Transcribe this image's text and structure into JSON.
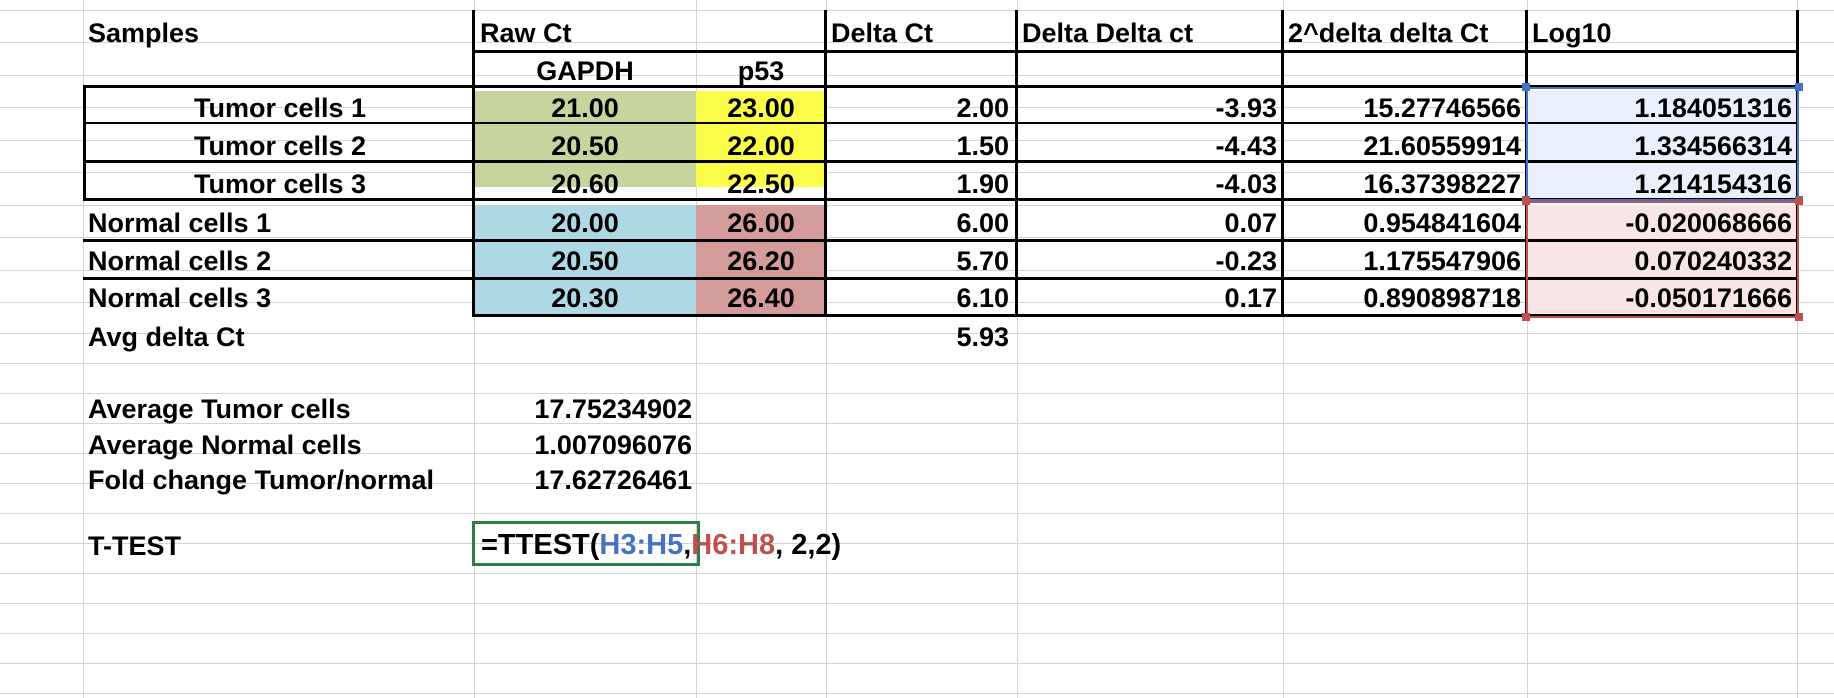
{
  "headers": {
    "samples": "Samples",
    "raw_ct": "Raw Ct",
    "gapdh": "GAPDH",
    "p53": "p53",
    "delta_ct": "Delta Ct",
    "delta_delta_ct": "Delta Delta ct",
    "two_pow": "2^delta delta Ct",
    "log10": "Log10"
  },
  "rows": [
    {
      "sample": "Tumor cells 1",
      "gapdh": "21.00",
      "p53": "23.00",
      "delta": "2.00",
      "ddct": "-3.93",
      "pow": "15.27746566",
      "log": "1.184051316"
    },
    {
      "sample": "Tumor cells 2",
      "gapdh": "20.50",
      "p53": "22.00",
      "delta": "1.50",
      "ddct": "-4.43",
      "pow": "21.60559914",
      "log": "1.334566314"
    },
    {
      "sample": "Tumor cells 3",
      "gapdh": "20.60",
      "p53": "22.50",
      "delta": "1.90",
      "ddct": "-4.03",
      "pow": "16.37398227",
      "log": "1.214154316"
    },
    {
      "sample": "Normal cells 1",
      "gapdh": "20.00",
      "p53": "26.00",
      "delta": "6.00",
      "ddct": "0.07",
      "pow": "0.954841604",
      "log": "-0.020068666"
    },
    {
      "sample": "Normal cells 2",
      "gapdh": "20.50",
      "p53": "26.20",
      "delta": "5.70",
      "ddct": "-0.23",
      "pow": "1.175547906",
      "log": "0.070240332"
    },
    {
      "sample": "Normal cells 3",
      "gapdh": "20.30",
      "p53": "26.40",
      "delta": "6.10",
      "ddct": "0.17",
      "pow": "0.890898718",
      "log": "-0.050171666"
    }
  ],
  "avg": {
    "label": "Avg delta Ct",
    "value": "5.93"
  },
  "summary": [
    {
      "label": "Average Tumor cells",
      "value": "17.75234902"
    },
    {
      "label": "Average Normal cells",
      "value": "1.007096076"
    },
    {
      "label": "Fold change Tumor/normal",
      "value": "17.62726461"
    }
  ],
  "ttest": {
    "label": "T-TEST",
    "prefix": "=TTEST(",
    "range1": "H3:H5",
    "comma": ",",
    "range2": "H6:H8",
    "suffix": ", 2,2)"
  },
  "colors": {
    "gapdh_tumor": "#c6d49e",
    "p53_tumor": "#fcfc4b",
    "gapdh_normal": "#add8e4",
    "p53_normal": "#d39b99",
    "range_blue": "#4472c4",
    "range_red": "#c0504d",
    "selection": "#2e7d45"
  }
}
